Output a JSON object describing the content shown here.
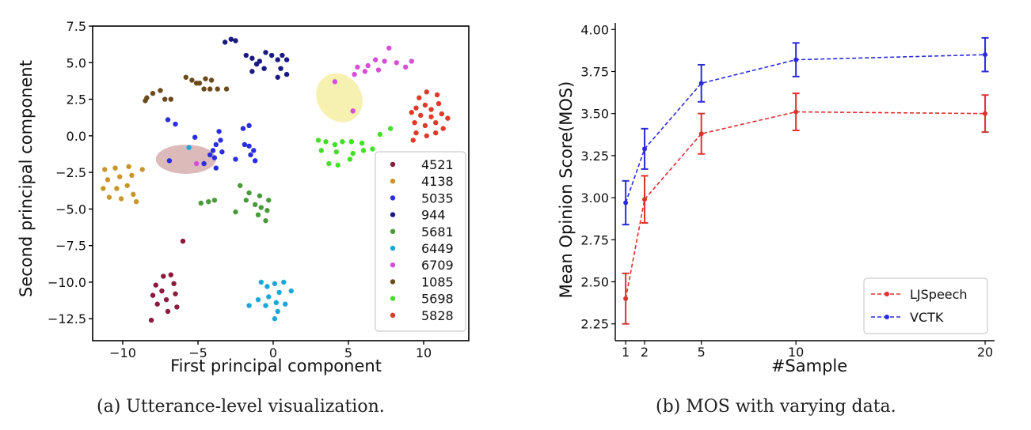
{
  "chart_data": [
    {
      "type": "scatter",
      "title": "",
      "caption": "(a) Utterance-level visualization.",
      "xlabel": "First principal component",
      "ylabel": "Second principal component",
      "xlim": [
        -12,
        13
      ],
      "ylim": [
        -14,
        7.5
      ],
      "xticks": [
        -10,
        -5,
        0,
        5,
        10
      ],
      "xtick_labels": [
        "−10",
        "−5",
        "0",
        "5",
        "10"
      ],
      "yticks": [
        7.5,
        5.0,
        2.5,
        0.0,
        -2.5,
        -5.0,
        -7.5,
        -10.0,
        -12.5
      ],
      "ytick_labels": [
        "7.5",
        "5.0",
        "2.5",
        "0.0",
        "−2.5",
        "−5.0",
        "−7.5",
        "−10.0",
        "−12.5"
      ],
      "legend_position": "lower-right",
      "grid": false,
      "series": [
        {
          "name": "4521",
          "color": "#8b1a3c",
          "points": [
            [
              -7.3,
              -9.6
            ],
            [
              -6.8,
              -9.5
            ],
            [
              -7.8,
              -10.2
            ],
            [
              -6.6,
              -10.1
            ],
            [
              -7.4,
              -10.6
            ],
            [
              -8.0,
              -10.9
            ],
            [
              -6.5,
              -10.8
            ],
            [
              -7.1,
              -11.2
            ],
            [
              -7.7,
              -11.5
            ],
            [
              -6.4,
              -11.7
            ],
            [
              -7.0,
              -12.0
            ],
            [
              -8.1,
              -12.6
            ],
            [
              -6.0,
              -7.2
            ]
          ]
        },
        {
          "name": "4138",
          "color": "#c8962a",
          "points": [
            [
              -11.2,
              -2.3
            ],
            [
              -10.5,
              -2.2
            ],
            [
              -9.6,
              -2.1
            ],
            [
              -8.7,
              -2.3
            ],
            [
              -11.0,
              -3.0
            ],
            [
              -10.2,
              -2.8
            ],
            [
              -9.4,
              -2.7
            ],
            [
              -11.3,
              -3.6
            ],
            [
              -10.4,
              -3.6
            ],
            [
              -9.7,
              -3.4
            ],
            [
              -10.9,
              -4.2
            ],
            [
              -9.3,
              -4.0
            ],
            [
              -10.1,
              -4.3
            ],
            [
              -9.1,
              -4.5
            ]
          ]
        },
        {
          "name": "5035",
          "color": "#2a2ee0",
          "points": [
            [
              -7.0,
              1.1
            ],
            [
              -6.5,
              0.8
            ],
            [
              -5.2,
              -0.1
            ],
            [
              -3.6,
              0.3
            ],
            [
              -3.5,
              -0.3
            ],
            [
              -3.8,
              -0.6
            ],
            [
              -4.0,
              -1.0
            ],
            [
              -4.2,
              -1.3
            ],
            [
              -3.9,
              -1.5
            ],
            [
              -3.4,
              -1.1
            ],
            [
              -4.6,
              -1.9
            ],
            [
              -3.8,
              -2.2
            ],
            [
              -2.5,
              -1.6
            ],
            [
              -1.9,
              -0.6
            ],
            [
              -1.6,
              -0.7
            ],
            [
              -1.5,
              -1.3
            ],
            [
              -1.3,
              -1.0
            ],
            [
              -1.2,
              -1.7
            ],
            [
              -2.0,
              0.5
            ],
            [
              -1.6,
              0.7
            ],
            [
              -6.9,
              -1.7
            ]
          ]
        },
        {
          "name": "944",
          "color": "#1a1a80",
          "points": [
            [
              -3.2,
              6.4
            ],
            [
              -2.8,
              6.6
            ],
            [
              -2.5,
              6.5
            ],
            [
              -1.8,
              5.5
            ],
            [
              -1.4,
              5.3
            ],
            [
              -0.9,
              5.1
            ],
            [
              -0.5,
              5.7
            ],
            [
              -0.1,
              5.5
            ],
            [
              0.3,
              5.2
            ],
            [
              0.6,
              5.5
            ],
            [
              0.9,
              5.2
            ],
            [
              0.5,
              4.6
            ],
            [
              -0.6,
              4.6
            ],
            [
              -1.4,
              4.4
            ],
            [
              0.9,
              4.2
            ],
            [
              0.3,
              4.0
            ],
            [
              -1.1,
              4.9
            ]
          ]
        },
        {
          "name": "5681",
          "color": "#4a9a3c",
          "points": [
            [
              -2.2,
              -3.4
            ],
            [
              -1.6,
              -3.9
            ],
            [
              -1.8,
              -4.4
            ],
            [
              -1.2,
              -4.7
            ],
            [
              -0.9,
              -4.1
            ],
            [
              -0.3,
              -4.4
            ],
            [
              -0.8,
              -4.9
            ],
            [
              -0.4,
              -5.1
            ],
            [
              -1.0,
              -5.4
            ],
            [
              -0.5,
              -5.8
            ],
            [
              -2.5,
              -5.2
            ],
            [
              -3.9,
              -4.4
            ],
            [
              -4.3,
              -4.5
            ],
            [
              -4.8,
              -4.6
            ]
          ]
        },
        {
          "name": "6449",
          "color": "#1aa8d8",
          "points": [
            [
              -0.8,
              -10.0
            ],
            [
              -0.4,
              -10.3
            ],
            [
              0.1,
              -10.1
            ],
            [
              0.7,
              -10.0
            ],
            [
              1.2,
              -10.6
            ],
            [
              0.4,
              -10.7
            ],
            [
              -0.3,
              -11.0
            ],
            [
              -1.0,
              -11.2
            ],
            [
              -1.6,
              -11.6
            ],
            [
              0.2,
              -11.4
            ],
            [
              0.8,
              -11.5
            ],
            [
              -0.5,
              -11.6
            ],
            [
              0.3,
              -12.0
            ],
            [
              0.1,
              -12.5
            ],
            [
              -5.6,
              -0.8
            ]
          ]
        },
        {
          "name": "6709",
          "color": "#d64fd6",
          "points": [
            [
              5.6,
              4.7
            ],
            [
              6.3,
              4.8
            ],
            [
              6.8,
              5.2
            ],
            [
              7.4,
              5.1
            ],
            [
              7.7,
              6.0
            ],
            [
              8.2,
              5.0
            ],
            [
              7.0,
              4.5
            ],
            [
              6.1,
              4.4
            ],
            [
              8.8,
              4.7
            ],
            [
              9.2,
              5.1
            ],
            [
              5.4,
              4.2
            ],
            [
              4.1,
              3.7
            ],
            [
              5.3,
              1.7
            ],
            [
              -5.1,
              -1.9
            ]
          ]
        },
        {
          "name": "1085",
          "color": "#6b4a1c",
          "points": [
            [
              -8.4,
              2.6
            ],
            [
              -8.5,
              2.4
            ],
            [
              -8.0,
              2.9
            ],
            [
              -7.5,
              3.1
            ],
            [
              -6.8,
              2.5
            ],
            [
              -5.8,
              4.0
            ],
            [
              -5.4,
              3.8
            ],
            [
              -4.9,
              3.6
            ],
            [
              -4.5,
              3.9
            ],
            [
              -4.1,
              3.8
            ],
            [
              -4.6,
              3.2
            ],
            [
              -4.2,
              3.2
            ],
            [
              -3.7,
              3.2
            ],
            [
              -3.1,
              3.2
            ],
            [
              -5.1,
              3.6
            ],
            [
              -7.2,
              2.5
            ]
          ]
        },
        {
          "name": "5698",
          "color": "#44e028",
          "points": [
            [
              3.0,
              -0.3
            ],
            [
              3.5,
              -0.4
            ],
            [
              4.1,
              -0.6
            ],
            [
              4.6,
              -0.4
            ],
            [
              5.2,
              -0.4
            ],
            [
              5.9,
              -0.5
            ],
            [
              3.2,
              -1.0
            ],
            [
              4.2,
              -1.1
            ],
            [
              5.3,
              -1.2
            ],
            [
              6.0,
              -1.0
            ],
            [
              3.7,
              -1.9
            ],
            [
              4.3,
              -2.0
            ],
            [
              5.1,
              -1.6
            ],
            [
              6.6,
              -0.9
            ],
            [
              7.1,
              0.1
            ],
            [
              7.8,
              0.5
            ]
          ]
        },
        {
          "name": "5828",
          "color": "#e03a2a",
          "points": [
            [
              9.5,
              1.9
            ],
            [
              10.1,
              2.1
            ],
            [
              10.5,
              1.8
            ],
            [
              11.0,
              2.2
            ],
            [
              10.2,
              3.0
            ],
            [
              9.7,
              2.6
            ],
            [
              10.9,
              2.8
            ],
            [
              9.2,
              1.6
            ],
            [
              9.8,
              1.4
            ],
            [
              10.5,
              1.3
            ],
            [
              11.2,
              1.5
            ],
            [
              11.6,
              1.2
            ],
            [
              9.4,
              0.9
            ],
            [
              10.1,
              0.7
            ],
            [
              10.8,
              0.9
            ],
            [
              11.3,
              0.5
            ],
            [
              9.5,
              0.2
            ],
            [
              10.2,
              0.0
            ],
            [
              10.8,
              0.2
            ],
            [
              9.3,
              -0.3
            ]
          ]
        }
      ],
      "legend": [
        "4521",
        "4138",
        "5035",
        "944",
        "5681",
        "6449",
        "6709",
        "1085",
        "5698",
        "5828"
      ],
      "highlights": [
        {
          "cx": 4.4,
          "cy": 2.6,
          "rx": 1.7,
          "ry": 1.5,
          "angle": 55,
          "color": "#f5f0a8"
        },
        {
          "cx": -5.8,
          "cy": -1.6,
          "rx": 2.0,
          "ry": 1.0,
          "angle": 0,
          "color": "#d9b3b3"
        }
      ]
    },
    {
      "type": "line",
      "title": "",
      "caption": "(b) MOS with varying data.",
      "xlabel": "#Sample",
      "ylabel": "Mean Opinion Score(MOS)",
      "x": [
        1,
        2,
        5,
        10,
        20
      ],
      "xlim": [
        0.45,
        20.5
      ],
      "ylim": [
        2.15,
        4.02
      ],
      "xticks": [
        1,
        2,
        5,
        10,
        20
      ],
      "xtick_labels": [
        "1",
        "2",
        "5",
        "10",
        "20"
      ],
      "yticks": [
        2.25,
        2.5,
        2.75,
        3.0,
        3.25,
        3.5,
        3.75,
        4.0
      ],
      "ytick_labels": [
        "2.25",
        "2.50",
        "2.75",
        "3.00",
        "3.25",
        "3.50",
        "3.75",
        "4.00"
      ],
      "legend_position": "lower-right",
      "grid": false,
      "series": [
        {
          "name": "LJSpeech",
          "color": "#e03030",
          "values": [
            2.4,
            2.99,
            3.38,
            3.51,
            3.5
          ],
          "errors": [
            0.15,
            0.14,
            0.12,
            0.11,
            0.11
          ]
        },
        {
          "name": "VCTK",
          "color": "#2a2ae0",
          "values": [
            2.97,
            3.29,
            3.68,
            3.82,
            3.85
          ],
          "errors": [
            0.13,
            0.12,
            0.11,
            0.1,
            0.1
          ]
        }
      ]
    }
  ]
}
